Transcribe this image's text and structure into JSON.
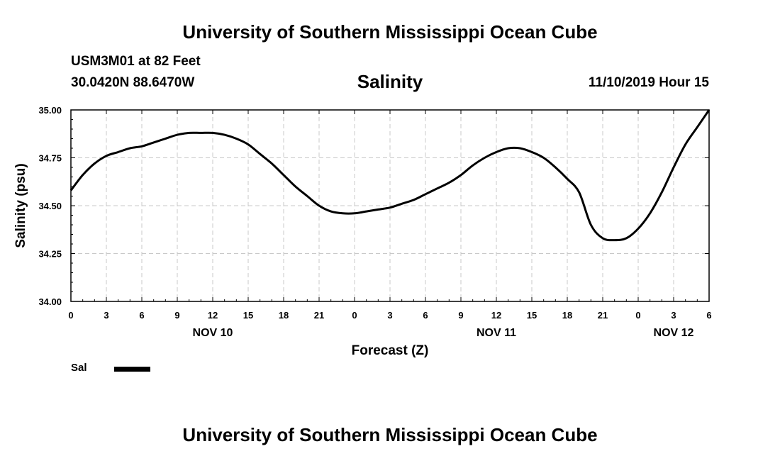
{
  "header": {
    "title": "University of Southern Mississippi Ocean Cube",
    "station": "USM3M01 at 82 Feet",
    "coordinates": "30.0420N 88.6470W",
    "valid_time": "11/10/2019 Hour 15"
  },
  "footer": {
    "title": "University of Southern Mississippi Ocean Cube"
  },
  "legend": {
    "label": "Sal"
  },
  "chart_data": {
    "type": "line",
    "title": "Salinity",
    "xlabel": "Forecast (Z)",
    "ylabel": "Salinity (psu)",
    "ylim": [
      34.0,
      35.0
    ],
    "yticks": [
      "34.00",
      "34.25",
      "34.50",
      "34.75",
      "35.00"
    ],
    "xlim": [
      0,
      54
    ],
    "x_unit": "hours since NOV 10 00Z",
    "xticks": [
      "0",
      "3",
      "6",
      "9",
      "12",
      "15",
      "18",
      "21",
      "0",
      "3",
      "6",
      "9",
      "12",
      "15",
      "18",
      "21",
      "0",
      "3",
      "6"
    ],
    "date_labels": [
      {
        "label": "NOV 10",
        "at_hour": 12
      },
      {
        "label": "NOV 11",
        "at_hour": 36
      },
      {
        "label": "NOV 12",
        "at_hour": 51
      }
    ],
    "grid": true,
    "legend_position": "bottom-left",
    "line_color": "#000000",
    "series": [
      {
        "name": "Sal",
        "x": [
          0,
          1,
          2,
          3,
          4,
          5,
          6,
          7,
          8,
          9,
          10,
          11,
          12,
          13,
          14,
          15,
          16,
          17,
          18,
          19,
          20,
          21,
          22,
          23,
          24,
          25,
          26,
          27,
          28,
          29,
          30,
          31,
          32,
          33,
          34,
          35,
          36,
          37,
          38,
          39,
          40,
          41,
          42,
          43,
          44,
          45,
          46,
          47,
          48,
          49,
          50,
          51,
          52,
          53,
          54
        ],
        "values": [
          34.58,
          34.66,
          34.72,
          34.76,
          34.78,
          34.8,
          34.81,
          34.83,
          34.85,
          34.87,
          34.88,
          34.88,
          34.88,
          34.87,
          34.85,
          34.82,
          34.77,
          34.72,
          34.66,
          34.6,
          34.55,
          34.5,
          34.47,
          34.46,
          34.46,
          34.47,
          34.48,
          34.49,
          34.51,
          34.53,
          34.56,
          34.59,
          34.62,
          34.66,
          34.71,
          34.75,
          34.78,
          34.8,
          34.8,
          34.78,
          34.75,
          34.7,
          34.64,
          34.57,
          34.4,
          34.33,
          34.32,
          34.33,
          34.38,
          34.46,
          34.57,
          34.7,
          34.82,
          34.91,
          35.0
        ]
      }
    ]
  }
}
